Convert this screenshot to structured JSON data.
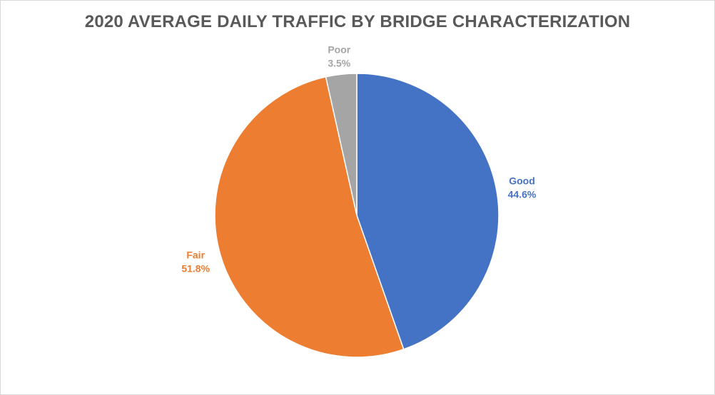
{
  "chart_data": {
    "type": "pie",
    "title": "2020 AVERAGE DAILY TRAFFIC BY BRIDGE CHARACTERIZATION",
    "slices": [
      {
        "name": "Good",
        "value": 44.6,
        "label": "44.6%",
        "color": "#4472C4"
      },
      {
        "name": "Fair",
        "value": 51.8,
        "label": "51.8%",
        "color": "#ED7D31"
      },
      {
        "name": "Poor",
        "value": 3.5,
        "label": "3.5%",
        "color": "#A5A5A5"
      }
    ],
    "start_angle_deg": 0,
    "direction": "clockwise",
    "legend": "none"
  }
}
